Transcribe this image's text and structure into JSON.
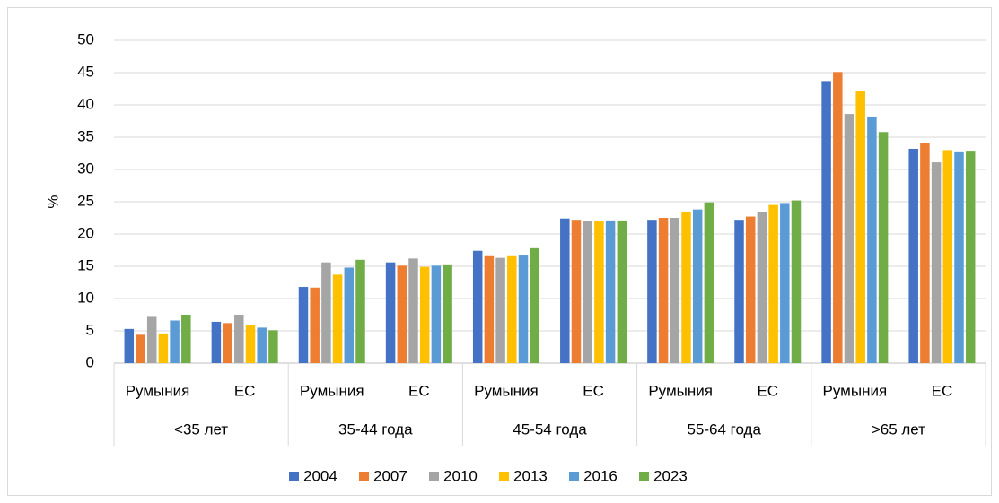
{
  "chart_data": {
    "type": "bar",
    "y_label": "%",
    "categories": [
      "Румыния",
      "ЕС",
      "Румыния",
      "ЕС",
      "Румыния",
      "ЕС",
      "Румыния",
      "ЕС",
      "Румыния",
      "ЕС"
    ],
    "groups": [
      "<35 лет",
      "35-44 года",
      "45-54 года",
      "55-64 года",
      ">65 лет"
    ],
    "series": [
      {
        "name": "2004",
        "color": "#4472c4",
        "values": [
          5.3,
          6.4,
          11.8,
          15.6,
          17.4,
          22.4,
          22.2,
          22.2,
          43.7,
          33.2
        ]
      },
      {
        "name": "2007",
        "color": "#ed7d31",
        "values": [
          4.4,
          6.2,
          11.7,
          15.1,
          16.7,
          22.2,
          22.5,
          22.7,
          45.1,
          34.1
        ]
      },
      {
        "name": "2010",
        "color": "#a5a5a5",
        "values": [
          7.3,
          7.5,
          15.6,
          16.2,
          16.3,
          22.0,
          22.5,
          23.4,
          38.6,
          31.1
        ]
      },
      {
        "name": "2013",
        "color": "#ffc000",
        "values": [
          4.6,
          5.9,
          13.7,
          14.9,
          16.7,
          22.0,
          23.4,
          24.5,
          42.1,
          33.0
        ]
      },
      {
        "name": "2016",
        "color": "#5b9bd5",
        "values": [
          6.6,
          5.5,
          14.8,
          15.1,
          16.8,
          22.1,
          23.8,
          24.8,
          38.2,
          32.8
        ]
      },
      {
        "name": "2023",
        "color": "#70ad47",
        "values": [
          7.5,
          5.1,
          16.0,
          15.3,
          17.8,
          22.1,
          24.9,
          25.2,
          35.8,
          32.9
        ]
      }
    ],
    "ylim": [
      0,
      50
    ],
    "yticks": [
      0,
      5,
      10,
      15,
      20,
      25,
      30,
      35,
      40,
      45,
      50
    ],
    "grid": true,
    "legend": "bottom"
  }
}
